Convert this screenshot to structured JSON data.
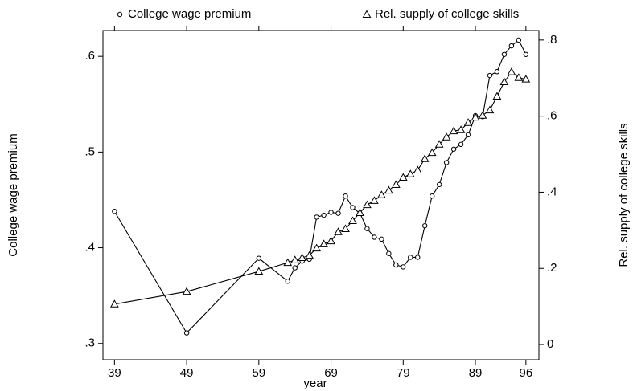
{
  "chart_data": {
    "type": "line",
    "x": [
      39,
      49,
      59,
      63,
      64,
      65,
      66,
      67,
      68,
      69,
      70,
      71,
      72,
      73,
      74,
      75,
      76,
      77,
      78,
      79,
      80,
      81,
      82,
      83,
      84,
      85,
      86,
      87,
      88,
      89,
      90,
      91,
      92,
      93,
      94,
      95,
      96
    ],
    "xlabel": "year",
    "ylabel": "College wage premium",
    "y2label": "Rel. supply of college skills",
    "xlim": [
      37.4,
      97.8
    ],
    "xticks": [
      39,
      49,
      59,
      69,
      79,
      89,
      96
    ],
    "ylim": [
      0.283,
      0.627
    ],
    "yticks": [
      {
        "value": 0.3,
        "label": ".3"
      },
      {
        "value": 0.4,
        "label": ".4"
      },
      {
        "value": 0.5,
        "label": ".5"
      },
      {
        "value": 0.6,
        "label": ".6"
      }
    ],
    "y2lim": [
      -0.04,
      0.825
    ],
    "y2ticks": [
      0,
      {
        "value": 0.2,
        "label": ".2"
      },
      {
        "value": 0.4,
        "label": ".4"
      },
      {
        "value": 0.6,
        "label": ".6"
      },
      {
        "value": 0.8,
        "label": ".8"
      }
    ],
    "series": [
      {
        "name": "College wage premium",
        "color": "#000000",
        "marker": "circle",
        "values": [
          0.438,
          0.311,
          0.389,
          0.365,
          0.379,
          0.386,
          0.388,
          0.432,
          0.434,
          0.437,
          0.436,
          0.454,
          0.442,
          0.436,
          0.42,
          0.411,
          0.409,
          0.394,
          0.382,
          0.38,
          0.39,
          0.39,
          0.423,
          0.454,
          0.466,
          0.489,
          0.503,
          0.508,
          0.518,
          0.538,
          0.537,
          0.58,
          0.584,
          0.602,
          0.611,
          0.617,
          0.602
        ]
      },
      {
        "name": "Rel. supply of college skills",
        "color": "#000000",
        "marker": "triangle",
        "axis": "y2",
        "values": [
          0.106,
          0.139,
          0.192,
          0.215,
          0.222,
          0.228,
          0.234,
          0.253,
          0.264,
          0.272,
          0.296,
          0.304,
          0.325,
          0.346,
          0.367,
          0.378,
          0.393,
          0.405,
          0.42,
          0.439,
          0.448,
          0.458,
          0.488,
          0.504,
          0.526,
          0.545,
          0.561,
          0.564,
          0.583,
          0.597,
          0.602,
          0.616,
          0.652,
          0.69,
          0.716,
          0.701,
          0.697
        ]
      }
    ]
  }
}
